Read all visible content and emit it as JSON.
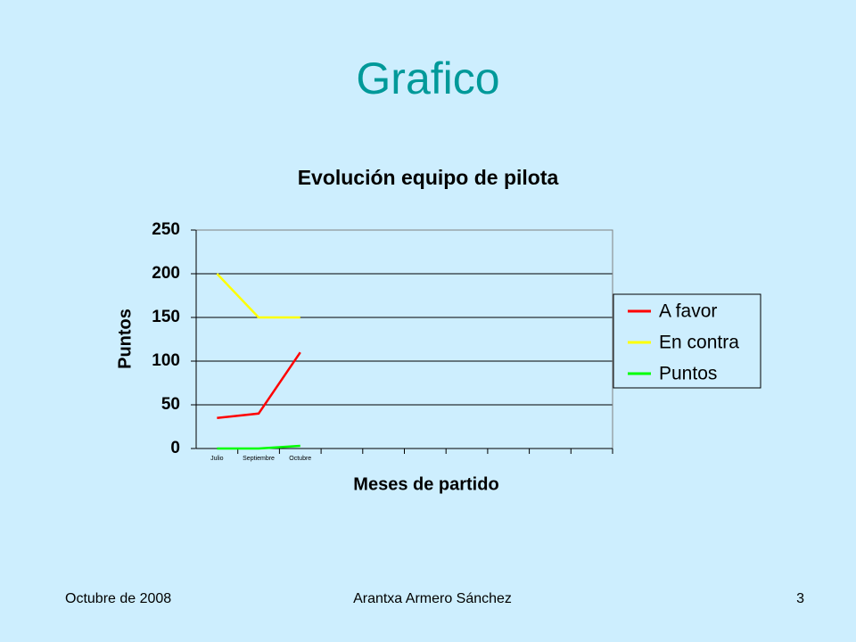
{
  "slide": {
    "title": "Grafico",
    "footer_left": "Octubre de 2008",
    "footer_center": "Arantxa Armero Sánchez",
    "page_number": "3"
  },
  "chart_data": {
    "type": "line",
    "title": "Evolución equipo de pilota",
    "x_label": "Meses de partido",
    "y_label": "Puntos",
    "categories": [
      "Julio",
      "Septiembre",
      "Octubre",
      null,
      null,
      null,
      null,
      null,
      null,
      null
    ],
    "series": [
      {
        "name": "A favor",
        "color": "#ff0000",
        "values": [
          35,
          40,
          110,
          null,
          null,
          null,
          null,
          null,
          null,
          null
        ]
      },
      {
        "name": "En contra",
        "color": "#ffff00",
        "values": [
          200,
          150,
          150,
          null,
          null,
          null,
          null,
          null,
          null,
          null
        ]
      },
      {
        "name": "Puntos",
        "color": "#00ff00",
        "values": [
          0,
          0,
          3,
          null,
          null,
          null,
          null,
          null,
          null,
          null
        ]
      }
    ],
    "ylim": [
      0,
      250
    ],
    "yticks": [
      0,
      50,
      100,
      150,
      200,
      250
    ],
    "grid": true,
    "legend": "right"
  }
}
